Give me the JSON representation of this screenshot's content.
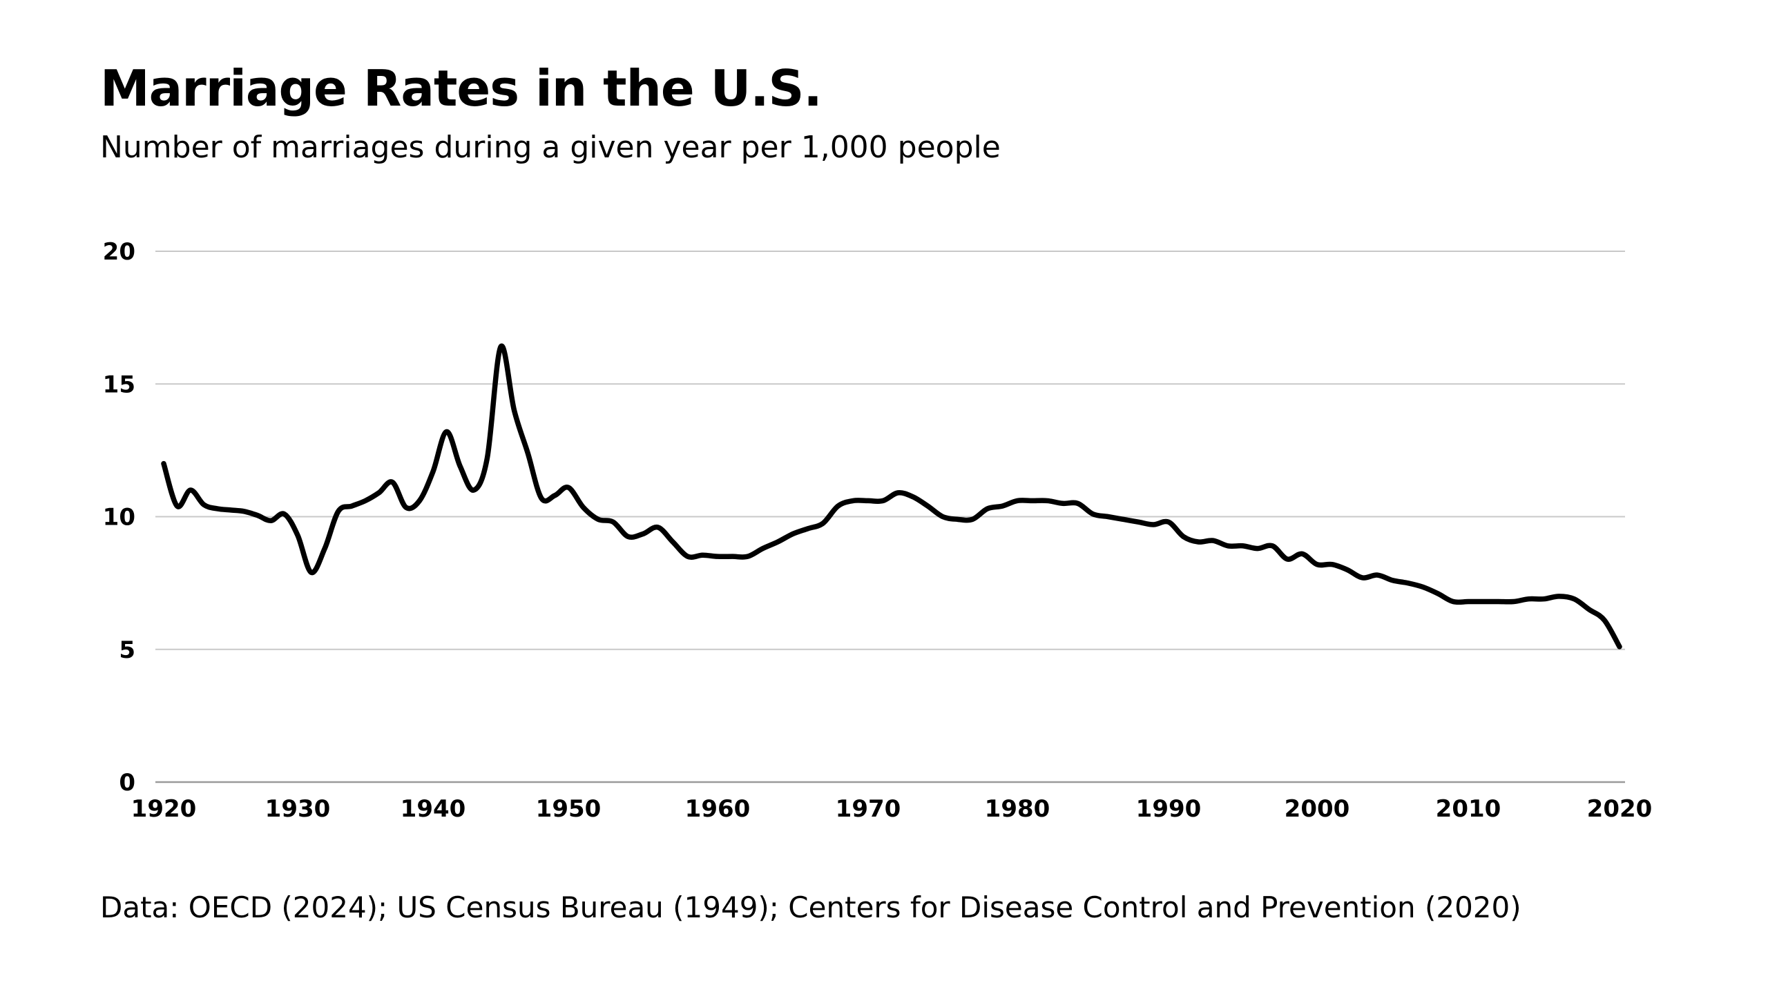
{
  "chart_data": {
    "type": "line",
    "title": "Marriage Rates in the U.S.",
    "subtitle": "Number of marriages during a given year per 1,000 people",
    "source": "Data: OECD (2024); US Census Bureau (1949); Centers for Disease Control and Prevention (2020)",
    "xlabel": "",
    "ylabel": "",
    "xlim": [
      1920,
      2020
    ],
    "ylim": [
      0,
      20
    ],
    "x_ticks": [
      "1920",
      "1930",
      "1940",
      "1950",
      "1960",
      "1970",
      "1980",
      "1990",
      "2000",
      "2010",
      "2020"
    ],
    "y_ticks": [
      "0",
      "5",
      "10",
      "15",
      "20"
    ],
    "grid": "horizontal",
    "line_color": "#000000",
    "grid_color": "#c8c8c8",
    "series": [
      {
        "x": [
          1920,
          1921,
          1922,
          1923,
          1924,
          1925,
          1926,
          1927,
          1928,
          1929,
          1930,
          1931,
          1932,
          1933,
          1934,
          1935,
          1936,
          1937,
          1938,
          1939,
          1940,
          1941,
          1942,
          1943,
          1944,
          1945,
          1946,
          1947,
          1948,
          1949,
          1950,
          1951,
          1952,
          1953,
          1954,
          1955,
          1956,
          1957,
          1958,
          1959,
          1960,
          1961,
          1962,
          1963,
          1964,
          1965,
          1966,
          1967,
          1968,
          1969,
          1970,
          1971,
          1972,
          1973,
          1974,
          1975,
          1976,
          1977,
          1978,
          1979,
          1980,
          1981,
          1982,
          1983,
          1984,
          1985,
          1986,
          1987,
          1988,
          1989,
          1990,
          1991,
          1992,
          1993,
          1994,
          1995,
          1996,
          1997,
          1998,
          1999,
          2000,
          2001,
          2002,
          2003,
          2004,
          2005,
          2006,
          2007,
          2008,
          2009,
          2010,
          2011,
          2012,
          2013,
          2014,
          2015,
          2016,
          2017,
          2018,
          2019,
          2020
        ],
        "values": [
          12.0,
          10.4,
          11.0,
          10.45,
          10.3,
          10.25,
          10.2,
          10.05,
          9.85,
          10.1,
          9.3,
          7.9,
          8.8,
          10.2,
          10.4,
          10.6,
          10.9,
          11.3,
          10.35,
          10.6,
          11.7,
          13.2,
          11.9,
          11.0,
          12.2,
          16.4,
          14.0,
          12.4,
          10.7,
          10.8,
          11.1,
          10.35,
          9.9,
          9.8,
          9.25,
          9.35,
          9.6,
          9.05,
          8.5,
          8.55,
          8.5,
          8.5,
          8.5,
          8.8,
          9.05,
          9.35,
          9.55,
          9.75,
          10.4,
          10.6,
          10.6,
          10.6,
          10.9,
          10.75,
          10.4,
          10.0,
          9.9,
          9.9,
          10.3,
          10.4,
          10.6,
          10.6,
          10.6,
          10.5,
          10.5,
          10.1,
          10.0,
          9.9,
          9.8,
          9.7,
          9.8,
          9.25,
          9.05,
          9.1,
          8.9,
          8.9,
          8.8,
          8.9,
          8.4,
          8.6,
          8.2,
          8.2,
          8.0,
          7.7,
          7.8,
          7.6,
          7.5,
          7.35,
          7.1,
          6.8,
          6.8,
          6.8,
          6.8,
          6.8,
          6.9,
          6.9,
          7.0,
          6.9,
          6.5,
          6.1,
          5.1
        ]
      }
    ]
  }
}
